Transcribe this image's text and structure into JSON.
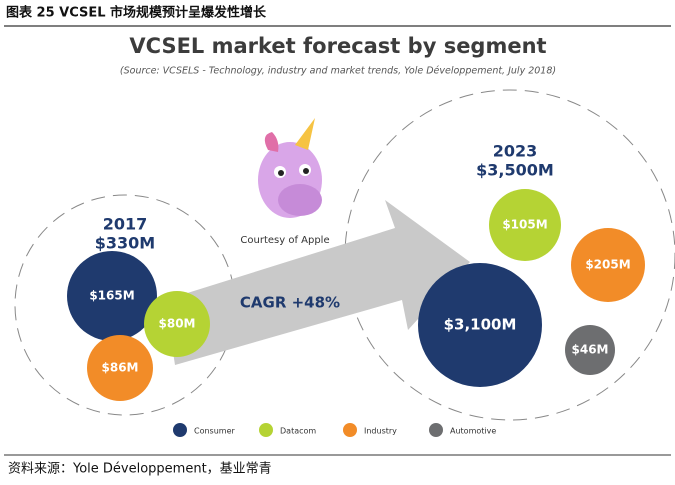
{
  "header": {
    "title": "图表 25 VCSEL 市场规模预计呈爆发性增长"
  },
  "title": "VCSEL market forecast by segment",
  "source": "(Source: VCSELS - Technology, industry and market trends, Yole Développement, July 2018)",
  "courtesy": "Courtesy of Apple",
  "cagr": "CAGR +48%",
  "groups": [
    {
      "year": "2017",
      "total": "$330M",
      "bubbles": [
        {
          "label": "$165M",
          "color": "#1f3a6e"
        },
        {
          "label": "$80M",
          "color": "#b5d334"
        },
        {
          "label": "$86M",
          "color": "#f28c28"
        }
      ]
    },
    {
      "year": "2023",
      "total": "$3,500M",
      "bubbles": [
        {
          "label": "$105M",
          "color": "#b5d334"
        },
        {
          "label": "$205M",
          "color": "#f28c28"
        },
        {
          "label": "$3,100M",
          "color": "#1f3a6e"
        },
        {
          "label": "$46M",
          "color": "#6d6e70"
        }
      ]
    }
  ],
  "legend": [
    {
      "label": "Consumer",
      "color": "#1f3a6e"
    },
    {
      "label": "Datacom",
      "color": "#b5d334"
    },
    {
      "label": "Industry",
      "color": "#f28c28"
    },
    {
      "label": "Automotive",
      "color": "#6d6e70"
    }
  ],
  "footer": "资料来源：Yole Développement，基业常青"
}
